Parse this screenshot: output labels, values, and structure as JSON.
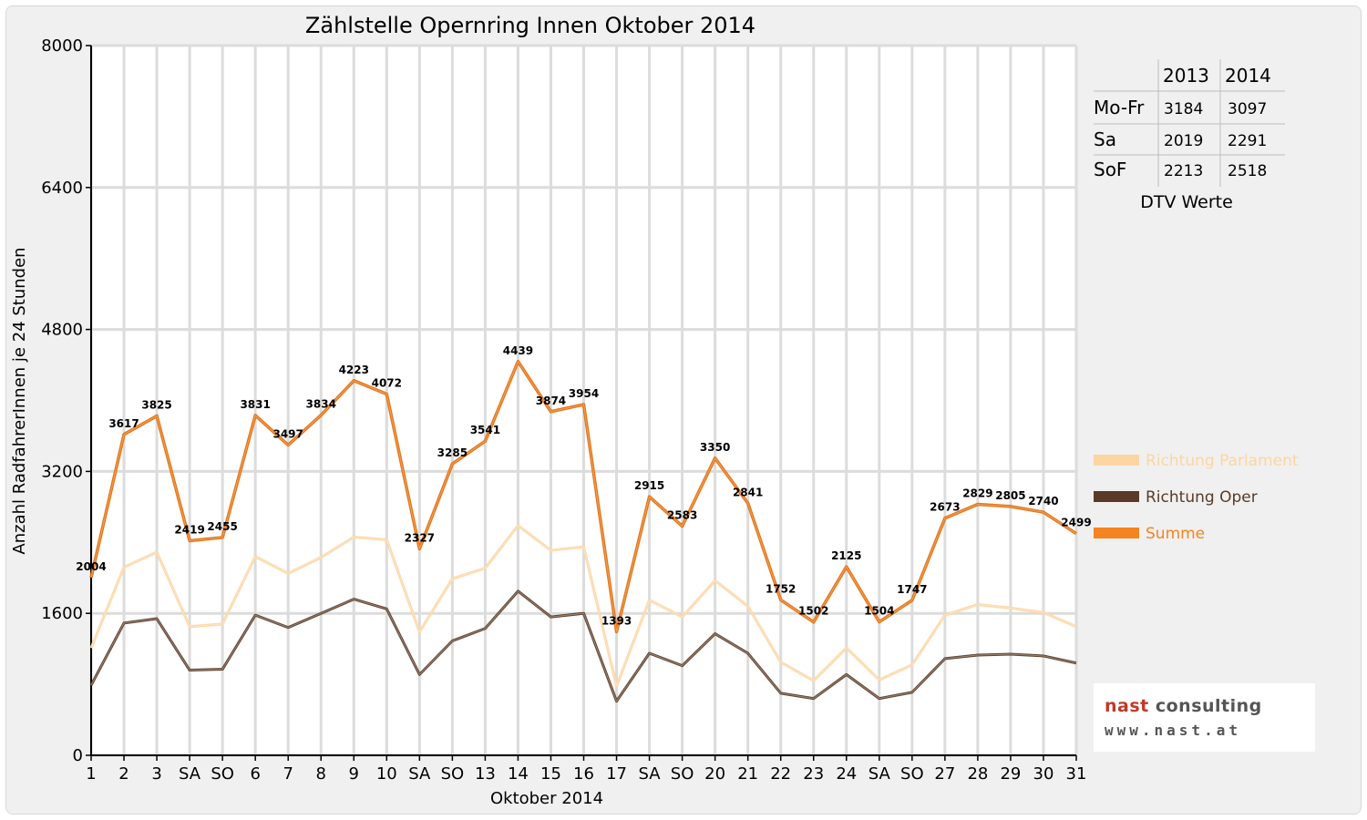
{
  "chart_data": {
    "type": "line",
    "title": "Zählstelle Opernring Innen Oktober 2014",
    "xlabel": "Oktober 2014",
    "ylabel": "Anzahl RadfahrerInnen je 24 Stunden",
    "ylim": [
      0,
      8000
    ],
    "yticks": [
      "0",
      "1600",
      "3200",
      "4800",
      "6400",
      "8000"
    ],
    "categories": [
      "1",
      "2",
      "3",
      "SA",
      "SO",
      "6",
      "7",
      "8",
      "9",
      "10",
      "SA",
      "SO",
      "13",
      "14",
      "15",
      "16",
      "17",
      "SA",
      "SO",
      "20",
      "21",
      "22",
      "23",
      "24",
      "SA",
      "SO",
      "27",
      "28",
      "29",
      "30",
      "31"
    ],
    "weekend_color": "#ff0000",
    "grid": true,
    "legend_position": "right",
    "series": [
      {
        "name": "Richtung Parlament",
        "color": "#fcd5a2",
        "values": [
          1210,
          2120,
          2290,
          1450,
          1480,
          2240,
          2050,
          2230,
          2460,
          2430,
          1390,
          1990,
          2110,
          2590,
          2310,
          2350,
          780,
          1750,
          1560,
          1970,
          1680,
          1050,
          840,
          1210,
          850,
          1020,
          1580,
          1700,
          1660,
          1610,
          1450
        ]
      },
      {
        "name": "Richtung Oper",
        "color": "#5a3a26",
        "values": [
          790,
          1490,
          1540,
          960,
          970,
          1580,
          1440,
          1600,
          1760,
          1650,
          910,
          1290,
          1430,
          1850,
          1560,
          1600,
          610,
          1150,
          1010,
          1370,
          1150,
          700,
          640,
          910,
          640,
          710,
          1090,
          1130,
          1140,
          1120,
          1040
        ]
      },
      {
        "name": "Summe",
        "color": "#f5831f",
        "values": [
          2004,
          3617,
          3825,
          2419,
          2455,
          3831,
          3497,
          3834,
          4223,
          4072,
          2327,
          3285,
          3541,
          4439,
          3874,
          3954,
          1393,
          2915,
          2583,
          3350,
          2841,
          1752,
          1502,
          2125,
          1504,
          1747,
          2673,
          2829,
          2805,
          2740,
          2499
        ],
        "labels": [
          "2004",
          "3617",
          "3825",
          "2419",
          "2455",
          "3831",
          "3497",
          "3834",
          "4223",
          "4072",
          "2327",
          "3285",
          "3541",
          "4439",
          "3874",
          "3954",
          "1393",
          "2915",
          "2583",
          "3350",
          "2841",
          "1752",
          "1502",
          "2125",
          "1504",
          "1747",
          "2673",
          "2829",
          "2805",
          "2740",
          "2499"
        ]
      }
    ]
  },
  "dtv_table": {
    "caption": "DTV Werte",
    "headers": [
      "",
      "2013",
      "2014"
    ],
    "rows": [
      {
        "label": "Mo-Fr",
        "y2013": "3184",
        "y2014": "3097"
      },
      {
        "label": "Sa",
        "y2013": "2019",
        "y2014": "2291"
      },
      {
        "label": "SoF",
        "y2013": "2213",
        "y2014": "2518"
      }
    ]
  },
  "logo": {
    "line1_a": "nast",
    "line1_b": " consulting",
    "line2": "www.nast.at"
  }
}
